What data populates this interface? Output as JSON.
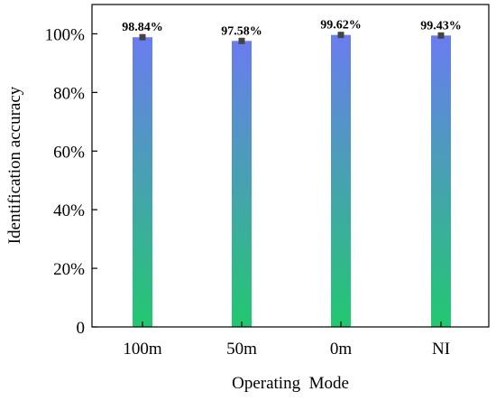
{
  "chart_data": {
    "type": "bar",
    "title": "",
    "xlabel": "Operating  Mode",
    "ylabel": "Identification accuracy",
    "categories": [
      "100m",
      "50m",
      "0m",
      "NI"
    ],
    "values": [
      98.84,
      97.58,
      99.62,
      99.43
    ],
    "value_labels": [
      "98.84%",
      "97.58%",
      "99.62%",
      "99.43%"
    ],
    "ylim": [
      0,
      110
    ],
    "yticks": [
      0,
      20,
      40,
      60,
      80,
      100
    ],
    "ytick_labels": [
      "0",
      "20%",
      "40%",
      "60%",
      "80%",
      "100%"
    ],
    "error_bars": true,
    "grid": false,
    "colors": {
      "bar_top": "#6a7cf0",
      "bar_bottom": "#22c870",
      "marker": "#444444",
      "axis": "#000000"
    }
  }
}
